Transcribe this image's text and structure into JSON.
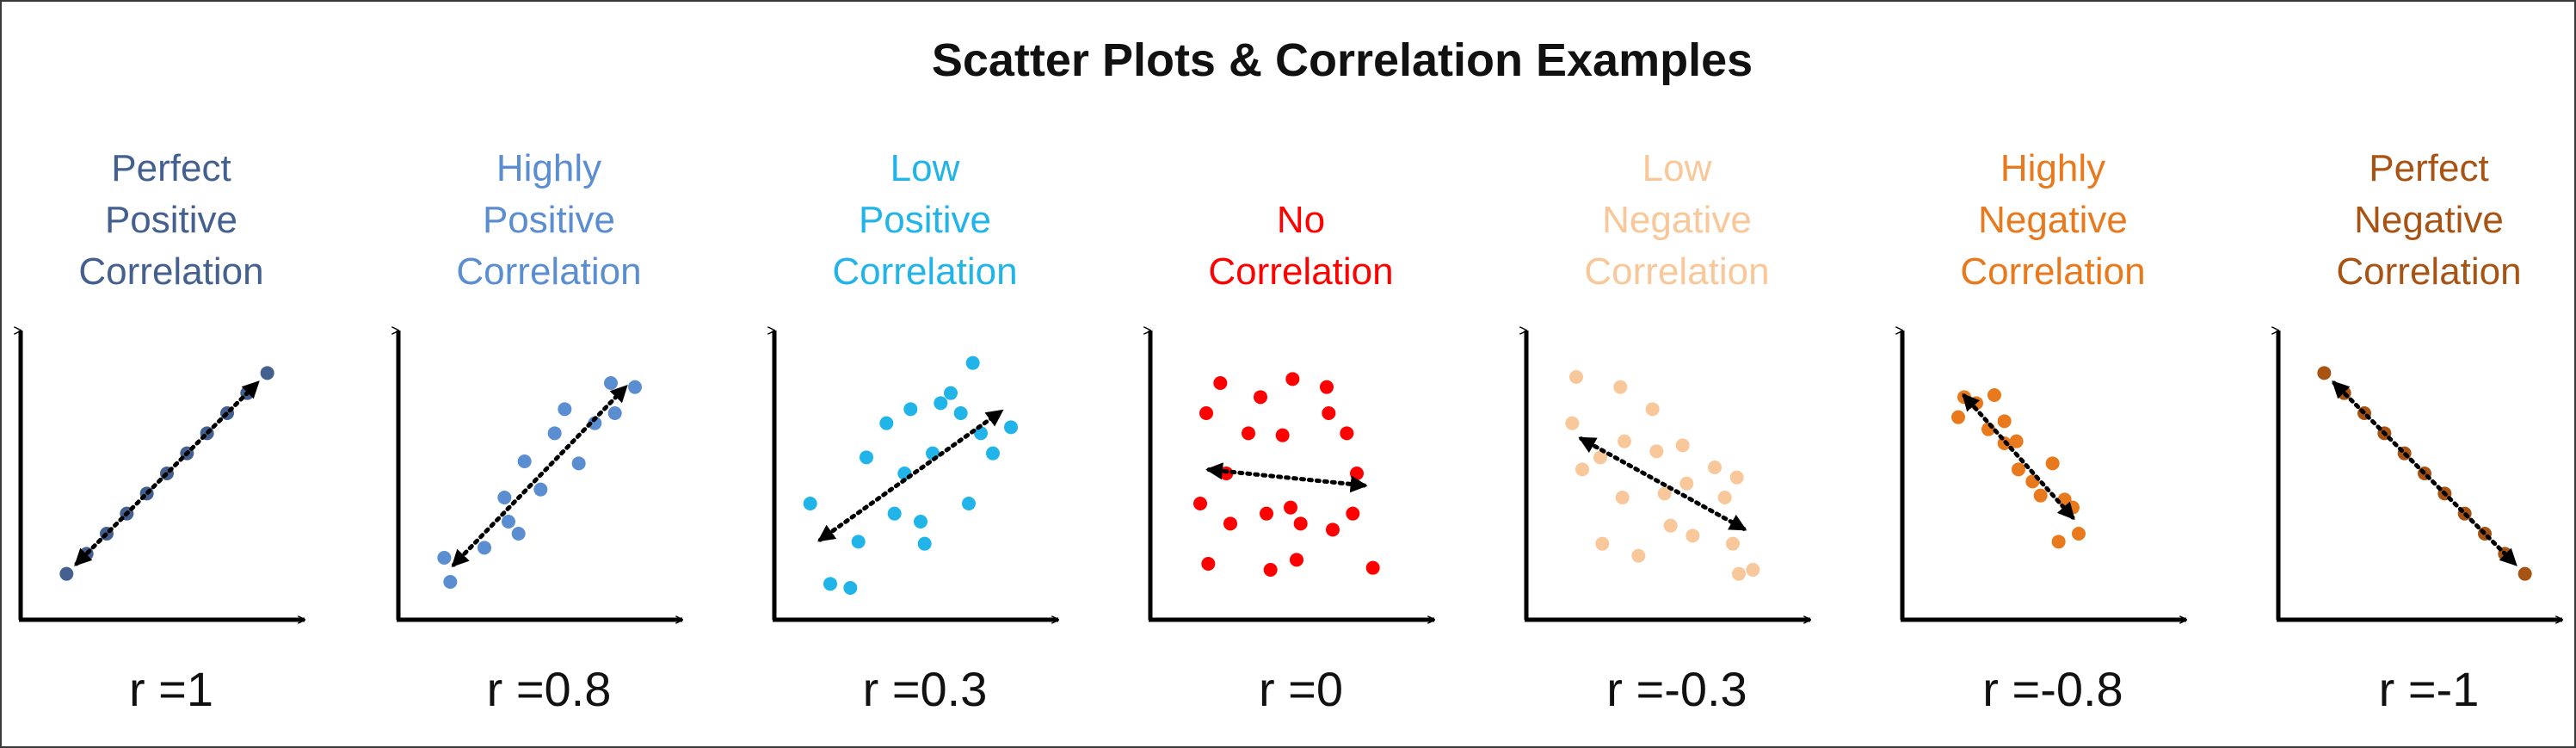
{
  "title": "Scatter Plots & Correlation Examples",
  "chart_data": [
    {
      "type": "scatter",
      "label_lines": [
        "Perfect",
        "Positive",
        "Correlation"
      ],
      "r_label": "r =1",
      "color": "#44608F",
      "trend_arrow": "double-headed dotted",
      "points": [
        [
          1,
          1
        ],
        [
          2,
          2
        ],
        [
          3,
          3
        ],
        [
          4,
          4
        ],
        [
          5,
          5
        ],
        [
          6,
          6
        ],
        [
          7,
          7
        ],
        [
          8,
          8
        ],
        [
          9,
          9
        ],
        [
          10,
          10
        ],
        [
          11,
          11
        ]
      ]
    },
    {
      "type": "scatter",
      "label_lines": [
        "Highly",
        "Positive",
        "Correlation"
      ],
      "r_label": "r =0.8",
      "color": "#5B8ED0",
      "trend_arrow": "double-headed dotted",
      "points": [
        [
          1,
          1.8
        ],
        [
          1.3,
          0.6
        ],
        [
          3,
          2.3
        ],
        [
          4,
          4.8
        ],
        [
          5,
          6.6
        ],
        [
          5.8,
          5.2
        ],
        [
          4.7,
          3.0
        ],
        [
          6.5,
          8.0
        ],
        [
          7,
          9.2
        ],
        [
          7.7,
          6.5
        ],
        [
          8.5,
          8.5
        ],
        [
          9.3,
          10.5
        ],
        [
          10.5,
          10.3
        ],
        [
          9.5,
          9.0
        ],
        [
          4.2,
          3.6
        ]
      ]
    },
    {
      "type": "scatter",
      "label_lines": [
        "Low",
        "Positive",
        "Correlation"
      ],
      "r_label": "r =0.3",
      "color": "#21B4E8",
      "trend_arrow": "double-headed dotted",
      "points": [
        [
          0.5,
          4.5
        ],
        [
          1.5,
          0.5
        ],
        [
          2.5,
          0.3
        ],
        [
          2.9,
          2.6
        ],
        [
          3.3,
          6.8
        ],
        [
          4.3,
          8.5
        ],
        [
          4.7,
          4.0
        ],
        [
          5.2,
          6.0
        ],
        [
          6.2,
          2.5
        ],
        [
          6.0,
          3.6
        ],
        [
          6.6,
          7.0
        ],
        [
          7.0,
          9.5
        ],
        [
          7.5,
          10.0
        ],
        [
          8.0,
          9.0
        ],
        [
          8.4,
          4.5
        ],
        [
          9.0,
          8.0
        ],
        [
          8.6,
          11.5
        ],
        [
          9.6,
          7.0
        ],
        [
          10.5,
          8.3
        ],
        [
          5.5,
          9.2
        ]
      ]
    },
    {
      "type": "scatter",
      "label_lines": [
        "No",
        "Correlation"
      ],
      "r_label": "r =0",
      "color": "#FF0000",
      "trend_arrow": "double-headed dotted",
      "points": [
        [
          1.5,
          9.0
        ],
        [
          1.2,
          4.5
        ],
        [
          1.6,
          1.5
        ],
        [
          2.2,
          10.5
        ],
        [
          2.5,
          6.0
        ],
        [
          2.7,
          3.5
        ],
        [
          3.6,
          8.0
        ],
        [
          4.2,
          9.8
        ],
        [
          4.5,
          4.0
        ],
        [
          4.7,
          1.2
        ],
        [
          5.3,
          7.9
        ],
        [
          5.8,
          10.7
        ],
        [
          5.7,
          4.3
        ],
        [
          6.2,
          3.5
        ],
        [
          6.0,
          1.7
        ],
        [
          7.5,
          10.3
        ],
        [
          7.6,
          9.0
        ],
        [
          7.8,
          3.2
        ],
        [
          8.5,
          8.0
        ],
        [
          8.8,
          4.0
        ],
        [
          9.0,
          6.0
        ],
        [
          9.8,
          1.3
        ]
      ]
    },
    {
      "type": "scatter",
      "label_lines": [
        "Low",
        "Negative",
        "Correlation"
      ],
      "r_label": "r =-0.3",
      "color": "#F8C89A",
      "trend_arrow": "double-headed dotted",
      "points": [
        [
          1.2,
          10.8
        ],
        [
          1.0,
          8.5
        ],
        [
          1.5,
          6.2
        ],
        [
          2.4,
          6.8
        ],
        [
          2.5,
          2.5
        ],
        [
          3.4,
          10.3
        ],
        [
          3.5,
          4.8
        ],
        [
          3.6,
          7.6
        ],
        [
          4.3,
          1.9
        ],
        [
          5.0,
          9.2
        ],
        [
          5.2,
          7.1
        ],
        [
          5.6,
          5.0
        ],
        [
          5.9,
          3.4
        ],
        [
          6.5,
          7.4
        ],
        [
          6.7,
          5.5
        ],
        [
          7.0,
          2.9
        ],
        [
          8.1,
          6.3
        ],
        [
          8.6,
          4.8
        ],
        [
          9.0,
          2.5
        ],
        [
          9.3,
          1.0
        ],
        [
          10.0,
          1.2
        ],
        [
          9.2,
          5.8
        ]
      ]
    },
    {
      "type": "scatter",
      "label_lines": [
        "Highly",
        "Negative",
        "Correlation"
      ],
      "r_label": "r =-0.8",
      "color": "#E87A1D",
      "trend_arrow": "double-headed dotted",
      "points": [
        [
          1.5,
          8.8
        ],
        [
          1.8,
          9.8
        ],
        [
          2.4,
          9.5
        ],
        [
          3.3,
          9.9
        ],
        [
          3.0,
          8.2
        ],
        [
          3.8,
          8.6
        ],
        [
          3.8,
          7.5
        ],
        [
          4.4,
          7.6
        ],
        [
          4.5,
          6.2
        ],
        [
          5.2,
          5.6
        ],
        [
          6.2,
          6.5
        ],
        [
          5.6,
          4.9
        ],
        [
          6.8,
          4.7
        ],
        [
          7.2,
          4.3
        ],
        [
          7.5,
          3.0
        ],
        [
          6.5,
          2.6
        ]
      ]
    },
    {
      "type": "scatter",
      "label_lines": [
        "Perfect",
        "Negative",
        "Correlation"
      ],
      "r_label": "r =-1",
      "color": "#A65314",
      "trend_arrow": "double-headed dotted",
      "points": [
        [
          1,
          11
        ],
        [
          2,
          10
        ],
        [
          3,
          9
        ],
        [
          4,
          8
        ],
        [
          5,
          7
        ],
        [
          6,
          6
        ],
        [
          7,
          5
        ],
        [
          8,
          4
        ],
        [
          9,
          3
        ],
        [
          10,
          2
        ],
        [
          11,
          1
        ]
      ]
    }
  ]
}
